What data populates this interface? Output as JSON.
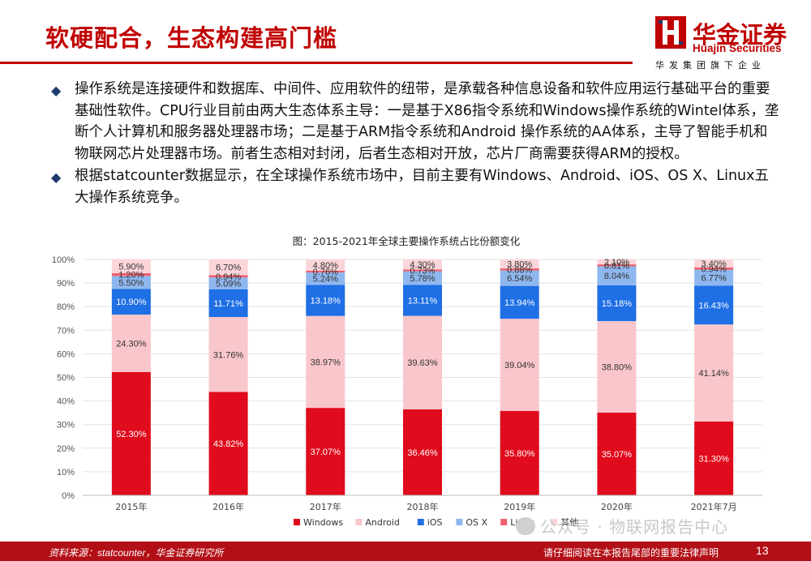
{
  "header": {
    "title": "软硬配合，生态构建高门槛",
    "logo_cn": "华金证券",
    "logo_en": "Huajin Securities",
    "logo_sub": "华发集团旗下企业"
  },
  "bullets": [
    "操作系统是连接硬件和数据库、中间件、应用软件的纽带，是承载各种信息设备和软件应用运行基础平台的重要基础性软件。CPU行业目前由两大生态体系主导：一是基于X86指令系统和Windows操作系统的Wintel体系，垄断个人计算机和服务器处理器市场；二是基于ARM指令系统和Android 操作系统的AA体系，主导了智能手机和物联网芯片处理器市场。前者生态相对封闭，后者生态相对开放，芯片厂商需要获得ARM的授权。",
    "根据statcounter数据显示，在全球操作系统市场中，目前主要有Windows、Android、iOS、OS X、Linux五大操作系统竞争。"
  ],
  "chart_data": {
    "type": "bar",
    "stacked": true,
    "title": "图：2015-2021年全球主要操作系统占比份额变化",
    "categories": [
      "2015年",
      "2016年",
      "2017年",
      "2018年",
      "2019年",
      "2020年",
      "2021年7月"
    ],
    "y_ticks": [
      "0%",
      "10%",
      "20%",
      "30%",
      "40%",
      "50%",
      "60%",
      "70%",
      "80%",
      "90%",
      "100%"
    ],
    "ylim": [
      0,
      100
    ],
    "series": [
      {
        "name": "Windows",
        "color": "#e00b1c",
        "values": [
          52.3,
          43.82,
          37.07,
          36.46,
          35.8,
          35.07,
          31.3
        ],
        "labels": [
          "52.30%",
          "43.82%",
          "37.07%",
          "36.46%",
          "35.80%",
          "35.07%",
          "31.30%"
        ]
      },
      {
        "name": "Android",
        "color": "#f9c6cc",
        "values": [
          24.3,
          31.76,
          38.97,
          39.63,
          39.04,
          38.8,
          41.14
        ],
        "labels": [
          "24.30%",
          "31.76%",
          "38.97%",
          "39.63%",
          "39.04%",
          "38.80%",
          "41.14%"
        ]
      },
      {
        "name": "iOS",
        "color": "#1f6fe5",
        "values": [
          10.9,
          11.71,
          13.18,
          13.11,
          13.94,
          15.18,
          16.43
        ],
        "labels": [
          "10.90%",
          "11.71%",
          "13.18%",
          "13.11%",
          "13.94%",
          "15.18%",
          "16.43%"
        ]
      },
      {
        "name": "OS X",
        "color": "#8fb7ef",
        "values": [
          5.5,
          5.09,
          5.24,
          5.78,
          6.54,
          8.04,
          6.77
        ],
        "labels": [
          "5.50%",
          "5.09%",
          "5.24%",
          "5.78%",
          "6.54%",
          "8.04%",
          "6.77%"
        ]
      },
      {
        "name": "Linux",
        "color": "#f0606e",
        "values": [
          1.2,
          0.94,
          0.76,
          0.73,
          0.88,
          0.81,
          0.94
        ],
        "labels": [
          "1.20%",
          "0.94%",
          "0.76%",
          "0.73%",
          "0.88%",
          "0.81%",
          "0.94%"
        ]
      },
      {
        "name": "其他",
        "color": "#fbd5d9",
        "values": [
          5.9,
          6.7,
          4.8,
          4.3,
          3.8,
          2.1,
          3.4
        ],
        "labels": [
          "5.90%",
          "6.70%",
          "4.80%",
          "4.30%",
          "3.80%",
          "2.10%",
          "3.40%"
        ]
      }
    ]
  },
  "footer": {
    "source": "资料来源：statcounter，华金证券研究所",
    "disclaimer": "请仔细阅读在本报告尾部的重要法律声明",
    "page": "13"
  },
  "watermark": "公众号 · 物联网报告中心"
}
